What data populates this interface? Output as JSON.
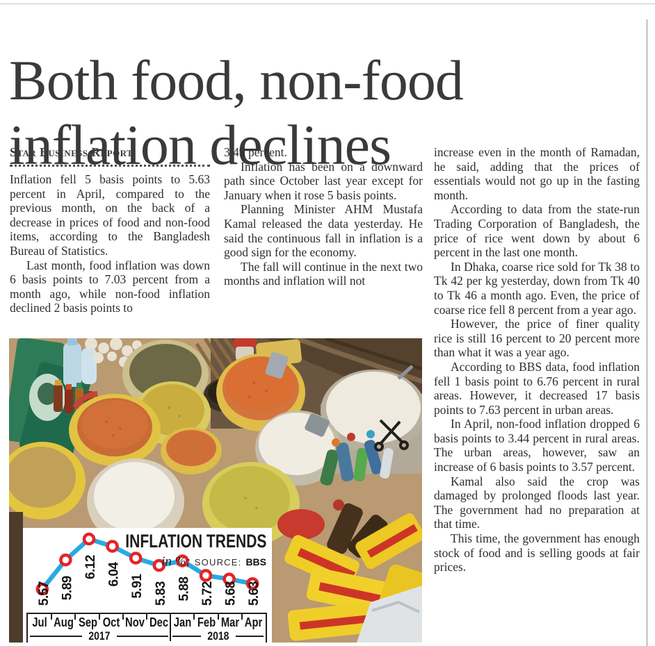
{
  "masthead": {
    "headline_line1": "Both food, non-food",
    "headline_line2": "inflation declines",
    "byline": "Star Business Report"
  },
  "article": {
    "column1": [
      "Inflation fell 5 basis points to 5.63 percent in April, compared to the previous month, on the back of a decrease in prices of food and non-food items, according to the Bangladesh Bureau of Statistics.",
      "Last month, food inflation was down 6 basis points to 7.03 percent from a month ago, while non-food inflation declined 2 basis points to"
    ],
    "column2": [
      "3.49 percent.",
      "Inflation has been on a downward path since October last year except for January when it rose 5 basis points.",
      "Planning Minister AHM Mustafa Kamal released the data yesterday. He said the continuous fall in inflation is a good sign for the economy.",
      "The fall will continue in the next two months and inflation will not"
    ],
    "column3": [
      "increase even in the month of Ramadan, he said, adding that the prices of essentials would not go up in the fasting month.",
      "According to data from the state-run Trading Corporation of Bangladesh, the price of rice went down by about 6 percent in the last one month.",
      "In Dhaka, coarse rice sold for Tk 38 to Tk 42 per kg yesterday, down from Tk 40 to Tk 46 a month ago. Even, the price of coarse rice fell 8 percent from a year ago.",
      "However, the price of finer quality rice is still 16 percent to 20 percent more than what it was a year ago.",
      "According to BBS data, food inflation fell 1 basis point to 6.76 percent in rural areas. However, it decreased 17 basis points to 7.63 percent in urban areas.",
      "In April, non-food inflation dropped 6 basis points to 3.44 percent in rural areas. The urban areas, however, saw an increase of 6 basis points to 3.57 percent.",
      "Kamal also said the crop was damaged by prolonged floods last year. The government had no preparation at that time.",
      "This time, the government has enough stock of food and is selling goods at fair prices."
    ]
  },
  "chart_data": {
    "type": "line",
    "title": "INFLATION TRENDS",
    "unit_note": "in %;",
    "source_label": "SOURCE:",
    "source_value": "BBS",
    "categories": [
      "Jul",
      "Aug",
      "Sep",
      "Oct",
      "Nov",
      "Dec",
      "Jan",
      "Feb",
      "Mar",
      "Apr"
    ],
    "values": [
      5.57,
      5.89,
      6.12,
      6.04,
      5.91,
      5.83,
      5.88,
      5.72,
      5.68,
      5.63
    ],
    "year_groups": [
      {
        "label": "2017",
        "months": 6
      },
      {
        "label": "2018",
        "months": 4
      }
    ],
    "ylim": [
      5.45,
      6.25
    ],
    "grid": false,
    "legend": "none",
    "line_color": "#29aae1",
    "marker_ring_color": "#e52328",
    "marker_fill_color": "#ffffff"
  }
}
